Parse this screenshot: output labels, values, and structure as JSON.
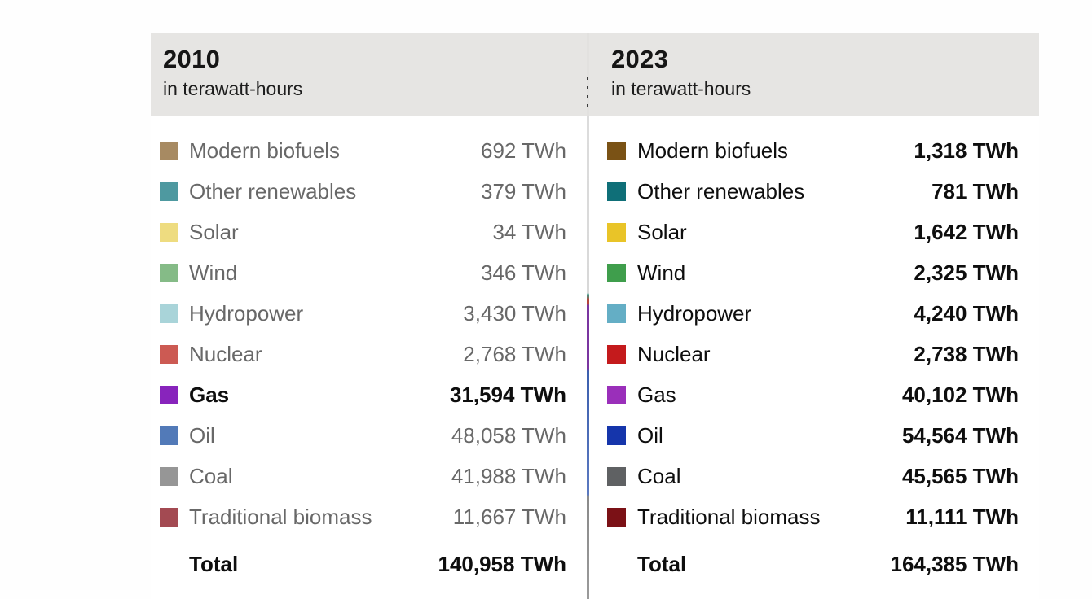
{
  "panels": [
    {
      "year": "2010",
      "subtitle": "in terawatt-hours",
      "header_bg": "#e6e5e3",
      "style": "muted",
      "rows": [
        {
          "label": "Modern biofuels",
          "value": "692 TWh",
          "color": "#a78a62"
        },
        {
          "label": "Other renewables",
          "value": "379 TWh",
          "color": "#4e99a0"
        },
        {
          "label": "Solar",
          "value": "34 TWh",
          "color": "#eedc80"
        },
        {
          "label": "Wind",
          "value": "346 TWh",
          "color": "#85bb87"
        },
        {
          "label": "Hydropower",
          "value": "3,430 TWh",
          "color": "#a9d4d9"
        },
        {
          "label": "Nuclear",
          "value": "2,768 TWh",
          "color": "#cc5a53"
        },
        {
          "label": "Gas",
          "value": "31,594 TWh",
          "color": "#8824bc",
          "highlighted": true
        },
        {
          "label": "Oil",
          "value": "48,058 TWh",
          "color": "#527ab8"
        },
        {
          "label": "Coal",
          "value": "41,988 TWh",
          "color": "#969696"
        },
        {
          "label": "Traditional biomass",
          "value": "11,667 TWh",
          "color": "#a34a52"
        }
      ],
      "total_label": "Total",
      "total_value": "140,958 TWh"
    },
    {
      "year": "2023",
      "subtitle": "in terawatt-hours",
      "header_bg": "#e6e5e3",
      "style": "saturated",
      "rows": [
        {
          "label": "Modern biofuels",
          "value": "1,318 TWh",
          "color": "#7a5215"
        },
        {
          "label": "Other renewables",
          "value": "781 TWh",
          "color": "#0f6f78"
        },
        {
          "label": "Solar",
          "value": "1,642 TWh",
          "color": "#e9c428"
        },
        {
          "label": "Wind",
          "value": "2,325 TWh",
          "color": "#3f9e4c"
        },
        {
          "label": "Hydropower",
          "value": "4,240 TWh",
          "color": "#64aec5"
        },
        {
          "label": "Nuclear",
          "value": "2,738 TWh",
          "color": "#c41a1c"
        },
        {
          "label": "Gas",
          "value": "40,102 TWh",
          "color": "#9a2fba"
        },
        {
          "label": "Oil",
          "value": "54,564 TWh",
          "color": "#1535ab"
        },
        {
          "label": "Coal",
          "value": "45,565 TWh",
          "color": "#5f6163"
        },
        {
          "label": "Traditional biomass",
          "value": "11,111 TWh",
          "color": "#7b1116"
        }
      ],
      "total_label": "Total",
      "total_value": "164,385 TWh"
    }
  ],
  "chart_data": {
    "type": "table",
    "title": "Global energy consumption by source, 2010 vs 2023",
    "unit": "TWh",
    "categories": [
      "Modern biofuels",
      "Other renewables",
      "Solar",
      "Wind",
      "Hydropower",
      "Nuclear",
      "Gas",
      "Oil",
      "Coal",
      "Traditional biomass"
    ],
    "series": [
      {
        "name": "2010",
        "values": [
          692,
          379,
          34,
          346,
          3430,
          2768,
          31594,
          48058,
          41988,
          11667
        ],
        "total": 140958
      },
      {
        "name": "2023",
        "values": [
          1318,
          781,
          1642,
          2325,
          4240,
          2738,
          40102,
          54564,
          45565,
          11111
        ],
        "total": 164385
      }
    ],
    "legend_colors_2010": [
      "#a78a62",
      "#4e99a0",
      "#eedc80",
      "#85bb87",
      "#a9d4d9",
      "#cc5a53",
      "#8824bc",
      "#527ab8",
      "#969696",
      "#a34a52"
    ],
    "legend_colors_2023": [
      "#7a5215",
      "#0f6f78",
      "#e9c428",
      "#3f9e4c",
      "#64aec5",
      "#c41a1c",
      "#9a2fba",
      "#1535ab",
      "#5f6163",
      "#7b1116"
    ],
    "highlighted_row": "Gas (2010 panel)"
  }
}
